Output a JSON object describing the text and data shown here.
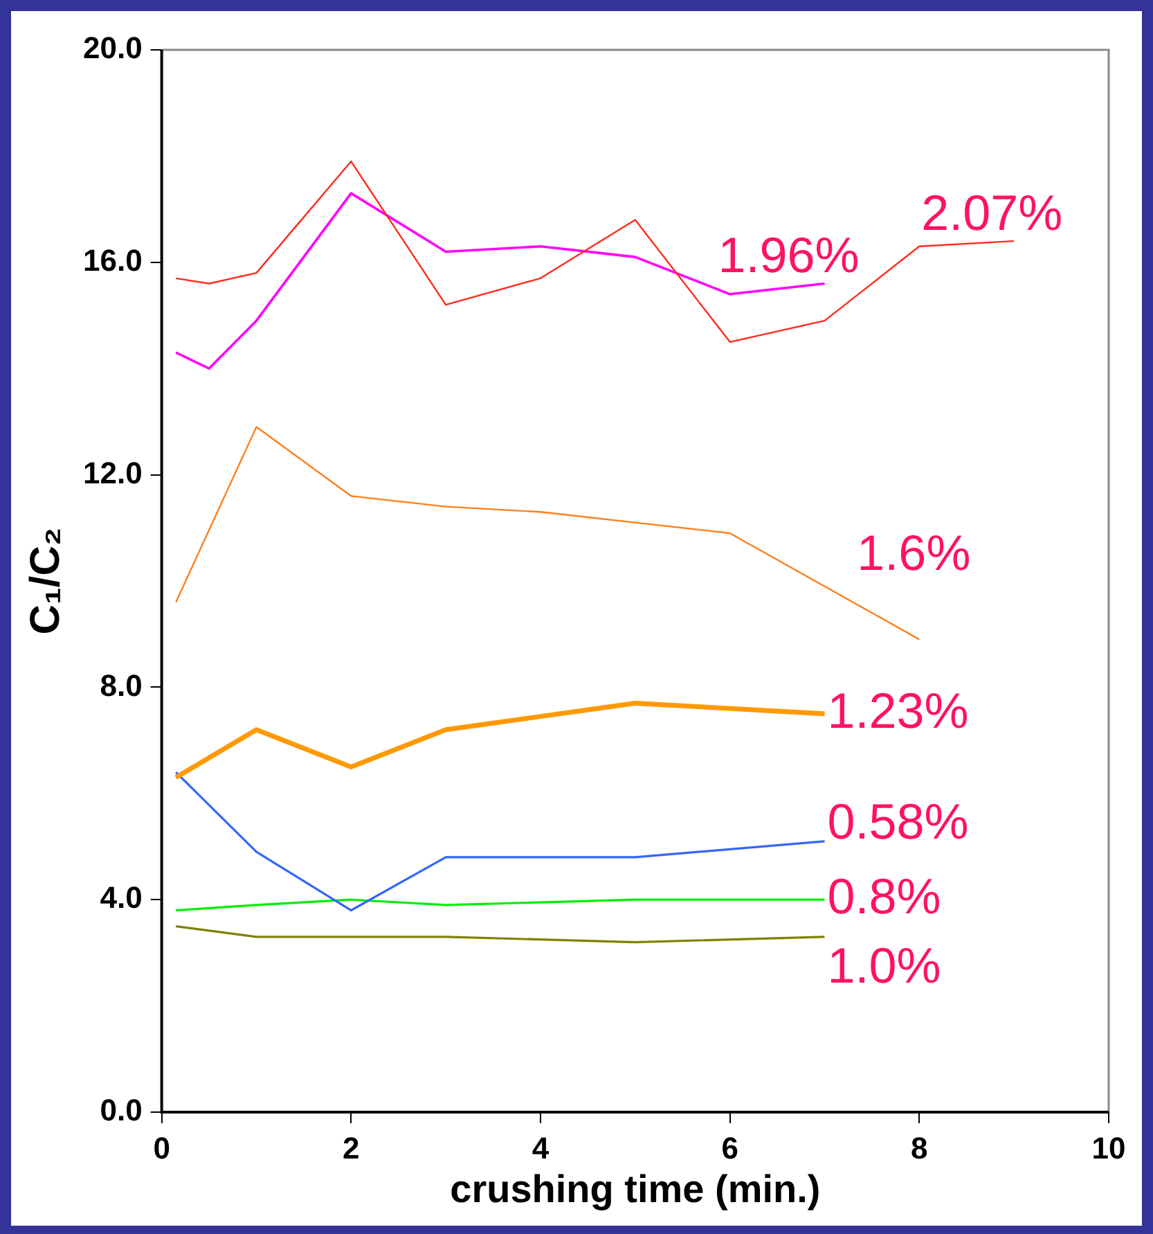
{
  "chart_data": {
    "type": "line",
    "xlabel": "crushing time (min.)",
    "ylabel": "C₁/C₂",
    "xlim": [
      0,
      10
    ],
    "xticks": [
      0,
      2,
      4,
      6,
      8,
      10
    ],
    "ylim": [
      0,
      20
    ],
    "yticks": [
      {
        "value": 0,
        "label": "0.0"
      },
      {
        "value": 4,
        "label": "4.0"
      },
      {
        "value": 8,
        "label": "8.0"
      },
      {
        "value": 12,
        "label": "12.0"
      },
      {
        "value": 16,
        "label": "16.0"
      },
      {
        "value": 20,
        "label": "20.0"
      }
    ],
    "grid": false,
    "legend": false,
    "marker": "none",
    "line_style": "solid",
    "series": [
      {
        "name": "2.07%",
        "color": "#ff2a1a",
        "x": [
          0.15,
          0.5,
          1,
          2,
          3,
          4,
          5,
          6,
          7,
          8,
          9
        ],
        "values": [
          15.7,
          15.6,
          15.8,
          17.9,
          15.2,
          15.7,
          16.8,
          14.5,
          14.9,
          16.3,
          16.4
        ]
      },
      {
        "name": "1.96%",
        "color": "#ff00ff",
        "x": [
          0.15,
          0.5,
          1,
          2,
          3,
          4,
          5,
          6,
          7
        ],
        "values": [
          14.3,
          14.0,
          14.9,
          17.3,
          16.2,
          16.3,
          16.1,
          15.4,
          15.6
        ]
      },
      {
        "name": "1.6%",
        "color": "#ff7f1a",
        "x": [
          0.15,
          1,
          2,
          3,
          4,
          5,
          6,
          8
        ],
        "values": [
          9.6,
          12.9,
          11.6,
          11.4,
          11.3,
          11.1,
          10.9,
          8.9
        ]
      },
      {
        "name": "1.23%",
        "color": "#ff9900",
        "x": [
          0.15,
          1,
          2,
          3,
          5,
          7
        ],
        "values": [
          6.3,
          7.2,
          6.5,
          7.2,
          7.7,
          7.5
        ]
      },
      {
        "name": "0.58%",
        "color": "#3366ff",
        "x": [
          0.15,
          1,
          2,
          3,
          5,
          7
        ],
        "values": [
          6.4,
          4.9,
          3.8,
          4.8,
          4.8,
          5.1
        ]
      },
      {
        "name": "0.8%",
        "color": "#00ee00",
        "x": [
          0.15,
          1,
          2,
          3,
          5,
          7
        ],
        "values": [
          3.8,
          3.9,
          4.0,
          3.9,
          4.0,
          4.0
        ]
      },
      {
        "name": "1.0%",
        "color": "#808000",
        "x": [
          0.15,
          1,
          2,
          3,
          5,
          7
        ],
        "values": [
          3.5,
          3.3,
          3.3,
          3.3,
          3.2,
          3.3
        ]
      }
    ]
  }
}
